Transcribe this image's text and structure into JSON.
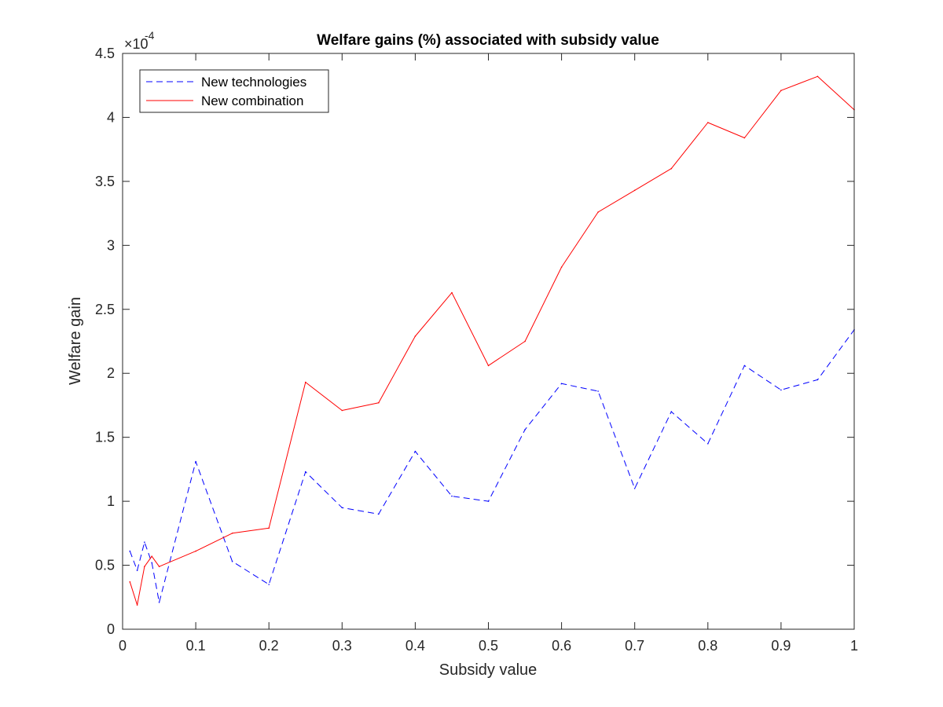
{
  "chart_data": {
    "type": "line",
    "title": "Welfare gains (%) associated with subsidy value",
    "xlabel": "Subsidy value",
    "ylabel": "Welfare gain",
    "xlim": [
      0,
      1
    ],
    "ylim": [
      0,
      4.5
    ],
    "y_multiplier": "×10",
    "y_exponent": "-4",
    "x_ticks": [
      0,
      0.1,
      0.2,
      0.3,
      0.4,
      0.5,
      0.6,
      0.7,
      0.8,
      0.9,
      1
    ],
    "x_tick_labels": [
      "0",
      "0.1",
      "0.2",
      "0.3",
      "0.4",
      "0.5",
      "0.6",
      "0.7",
      "0.8",
      "0.9",
      "1"
    ],
    "y_ticks": [
      0,
      0.5,
      1,
      1.5,
      2,
      2.5,
      3,
      3.5,
      4,
      4.5
    ],
    "y_tick_labels": [
      "0",
      "0.5",
      "1",
      "1.5",
      "2",
      "2.5",
      "3",
      "3.5",
      "4",
      "4.5"
    ],
    "grid": false,
    "legend_position": "top-left",
    "series": [
      {
        "name": "New technologies",
        "color": "#0000ff",
        "style": "dashed",
        "x": [
          0.01,
          0.02,
          0.03,
          0.04,
          0.05,
          0.1,
          0.15,
          0.2,
          0.25,
          0.3,
          0.35,
          0.4,
          0.45,
          0.5,
          0.55,
          0.6,
          0.65,
          0.7,
          0.75,
          0.8,
          0.85,
          0.9,
          0.95,
          1.0
        ],
        "y": [
          0.61,
          0.46,
          0.68,
          0.52,
          0.21,
          1.31,
          0.53,
          0.35,
          1.23,
          0.95,
          0.9,
          1.39,
          1.04,
          1.0,
          1.56,
          1.92,
          1.86,
          1.1,
          1.7,
          1.45,
          2.06,
          1.87,
          1.95,
          2.34
        ]
      },
      {
        "name": "New combination",
        "color": "#ff0000",
        "style": "solid",
        "x": [
          0.01,
          0.02,
          0.03,
          0.04,
          0.05,
          0.1,
          0.15,
          0.2,
          0.25,
          0.3,
          0.35,
          0.4,
          0.45,
          0.5,
          0.55,
          0.6,
          0.65,
          0.7,
          0.75,
          0.8,
          0.85,
          0.9,
          0.95,
          1.0
        ],
        "y": [
          0.37,
          0.19,
          0.49,
          0.57,
          0.49,
          0.61,
          0.75,
          0.79,
          1.93,
          1.71,
          1.77,
          2.29,
          2.63,
          2.06,
          2.25,
          2.83,
          3.26,
          3.43,
          3.6,
          3.96,
          3.84,
          4.21,
          4.32,
          4.06
        ]
      }
    ]
  }
}
